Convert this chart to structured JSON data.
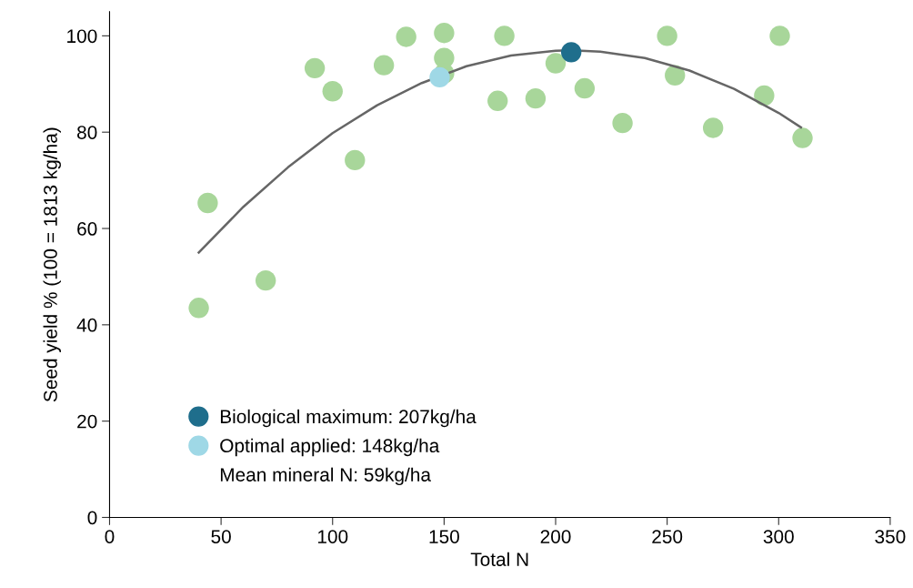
{
  "chart_data": {
    "type": "scatter",
    "xlabel": "Total N",
    "ylabel": "Seed yield % (100 = 1813 kg/ha)",
    "xlim": [
      0,
      350
    ],
    "xticks": [
      0,
      50,
      100,
      150,
      200,
      250,
      300,
      350
    ],
    "ylim": [
      0,
      105
    ],
    "yticks": [
      0,
      20,
      40,
      60,
      80,
      100
    ],
    "grid": false,
    "legend": "bottom left",
    "marker": "circle",
    "annotations": [
      "Mean mineral N: 59kg/ha"
    ],
    "series": [
      {
        "color": "#a8d69a",
        "x": [
          40,
          44,
          70,
          92,
          100,
          110,
          123,
          133,
          150,
          150,
          150,
          174,
          177,
          191,
          200,
          213,
          230,
          250,
          253.5,
          270.6,
          293.5,
          300.5,
          310.7
        ],
        "values": [
          43.5,
          65.3,
          49.2,
          93.3,
          88.5,
          74.2,
          93.9,
          99.8,
          100.6,
          95.4,
          92.2,
          86.5,
          100,
          87,
          94.3,
          89.1,
          81.9,
          100,
          91.8,
          80.9,
          87.6,
          100,
          78.8
        ]
      },
      {
        "type": "line",
        "marker": "none",
        "color": "#666666",
        "x": [
          40,
          60,
          80,
          100,
          120,
          140,
          160,
          180,
          200,
          207,
          220,
          240,
          260,
          280,
          300,
          310
        ],
        "values": [
          55,
          64.5,
          72.7,
          79.8,
          85.6,
          90.2,
          93.7,
          95.9,
          96.9,
          97,
          96.7,
          95.4,
          92.8,
          89,
          84,
          81
        ]
      },
      {
        "name": "Biological maximum: 207kg/ha",
        "color": "#1f6e8c",
        "x": [
          207
        ],
        "values": [
          96.6
        ]
      },
      {
        "name": "Optimal applied: 148kg/ha",
        "color": "#9fd8e6",
        "x": [
          148
        ],
        "values": [
          91.4
        ]
      }
    ]
  }
}
